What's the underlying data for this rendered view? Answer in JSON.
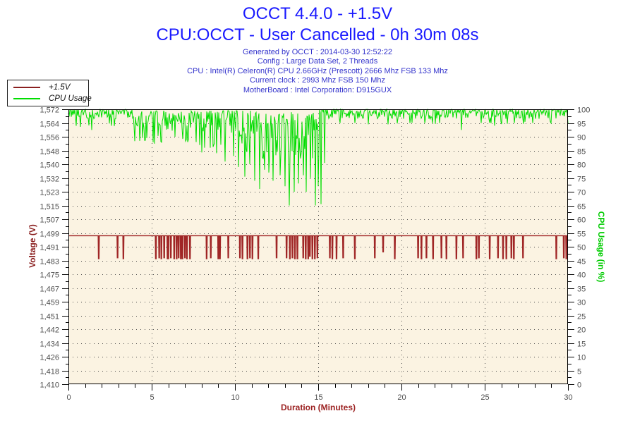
{
  "header": {
    "title": "OCCT 4.4.0 - +1.5V",
    "subtitle": "CPU:OCCT - User Cancelled - 0h 30m 08s",
    "title_color": "#1a1aff",
    "info_color": "#3333cc",
    "info": [
      "Generated by OCCT : 2014-03-30 12:52:22",
      "Config : Large Data Set, 2 Threads",
      "CPU : Intel(R) Celeron(R) CPU 2.66GHz (Prescott) 2666 Mhz FSB 133 Mhz",
      "Current clock : 2993 Mhz FSB 150 Mhz",
      "MotherBoard : Intel Corporation: D915GUX"
    ]
  },
  "legend": {
    "items": [
      {
        "label": "+1.5V",
        "color": "#8b2020"
      },
      {
        "label": "CPU Usage",
        "color": "#00dd00"
      }
    ]
  },
  "chart_data": {
    "type": "line",
    "title": "OCCT 4.4.0 - +1.5V",
    "x_axis": {
      "label": "Duration (Minutes)",
      "min": 0,
      "max": 30,
      "major_step": 5,
      "minor_step": 1,
      "tick_labels": [
        "0",
        "5",
        "10",
        "15",
        "20",
        "25",
        "30"
      ],
      "label_color": "#9c2323"
    },
    "y_left": {
      "label": "Voltage (V)",
      "min": 1.41,
      "max": 1.572,
      "label_color": "#8b2020",
      "tick_color": "#4d4d4d",
      "tick_labels": [
        "1,410",
        "1,418",
        "1,426",
        "1,434",
        "1,442",
        "1,451",
        "1,459",
        "1,467",
        "1,475",
        "1,483",
        "1,491",
        "1,499",
        "1,507",
        "1,515",
        "1,523",
        "1,532",
        "1,540",
        "1,548",
        "1,556",
        "1,564",
        "1,572"
      ]
    },
    "y_right": {
      "label": "CPU Usage (in %)",
      "min": 0,
      "max": 100,
      "major_step": 5,
      "label_color": "#00cc00",
      "tick_color": "#4d4d4d"
    },
    "plot": {
      "bg": "#fbf3e2",
      "grid_color": "#4a4a4a",
      "frame_color": "#000000"
    },
    "series": [
      {
        "name": "+1.5V",
        "axis": "left",
        "color": "#a02626",
        "baseline": 1.4975,
        "spikes": [
          [
            1.82,
            1.484
          ],
          [
            2.95,
            1.4845
          ],
          [
            3.3,
            1.484
          ],
          [
            5.25,
            1.484
          ],
          [
            5.45,
            1.4845
          ],
          [
            5.58,
            1.484
          ],
          [
            5.75,
            1.4845
          ],
          [
            5.95,
            1.484
          ],
          [
            6.0,
            1.484
          ],
          [
            6.15,
            1.4845
          ],
          [
            6.35,
            1.484
          ],
          [
            6.5,
            1.484
          ],
          [
            6.62,
            1.4845
          ],
          [
            6.75,
            1.484
          ],
          [
            6.85,
            1.484
          ],
          [
            7.0,
            1.4845
          ],
          [
            7.12,
            1.484
          ],
          [
            7.3,
            1.484
          ],
          [
            8.3,
            1.484
          ],
          [
            8.55,
            1.4845
          ],
          [
            9.0,
            1.484
          ],
          [
            9.1,
            1.484
          ],
          [
            9.6,
            1.4845
          ],
          [
            10.3,
            1.4845
          ],
          [
            10.45,
            1.484
          ],
          [
            10.75,
            1.484
          ],
          [
            10.9,
            1.4845
          ],
          [
            11.05,
            1.484
          ],
          [
            11.4,
            1.484
          ],
          [
            12.5,
            1.4845
          ],
          [
            13.1,
            1.4845
          ],
          [
            13.3,
            1.484
          ],
          [
            13.45,
            1.4845
          ],
          [
            13.6,
            1.484
          ],
          [
            13.75,
            1.484
          ],
          [
            14.1,
            1.4845
          ],
          [
            14.25,
            1.484
          ],
          [
            14.4,
            1.484
          ],
          [
            14.5,
            1.4855
          ],
          [
            14.65,
            1.484
          ],
          [
            14.8,
            1.484
          ],
          [
            14.95,
            1.4845
          ],
          [
            15.7,
            1.4845
          ],
          [
            15.85,
            1.484
          ],
          [
            16.1,
            1.484
          ],
          [
            16.5,
            1.4845
          ],
          [
            17.2,
            1.484
          ],
          [
            18.4,
            1.4845
          ],
          [
            18.9,
            1.488
          ],
          [
            19.6,
            1.484
          ],
          [
            21.0,
            1.4845
          ],
          [
            21.2,
            1.484
          ],
          [
            21.5,
            1.4845
          ],
          [
            21.9,
            1.484
          ],
          [
            22.4,
            1.4845
          ],
          [
            22.7,
            1.484
          ],
          [
            23.3,
            1.484
          ],
          [
            23.7,
            1.4845
          ],
          [
            24.5,
            1.484
          ],
          [
            24.65,
            1.4845
          ],
          [
            25.3,
            1.484
          ],
          [
            25.8,
            1.4845
          ],
          [
            26.1,
            1.484
          ],
          [
            26.3,
            1.484
          ],
          [
            26.6,
            1.4845
          ],
          [
            26.75,
            1.484
          ],
          [
            27.3,
            1.4845
          ],
          [
            29.3,
            1.484
          ],
          [
            29.75,
            1.4845
          ],
          [
            29.9,
            1.484
          ]
        ]
      },
      {
        "name": "CPU Usage",
        "axis": "right",
        "color": "#00dd00",
        "band_segments": [
          [
            0,
            3.85,
            96.5,
            100,
            0.04,
            93.5
          ],
          [
            3.85,
            8.0,
            92,
            99.5,
            0.15,
            88
          ],
          [
            8.0,
            11.0,
            90,
            99.5,
            0.2,
            84
          ],
          [
            11.0,
            15.05,
            88.5,
            99,
            0.25,
            82
          ],
          [
            15.05,
            30,
            96.5,
            100,
            0.06,
            94.5
          ]
        ],
        "spikes": [
          [
            1.4,
            92.5
          ],
          [
            2.6,
            94
          ],
          [
            4.3,
            88.5
          ],
          [
            4.7,
            89.5
          ],
          [
            5.15,
            87.5
          ],
          [
            5.6,
            88
          ],
          [
            6.4,
            90
          ],
          [
            7.2,
            89
          ],
          [
            7.9,
            87
          ],
          [
            8.5,
            86
          ],
          [
            8.9,
            84
          ],
          [
            9.4,
            81
          ],
          [
            9.9,
            83
          ],
          [
            10.2,
            79
          ],
          [
            10.6,
            75.5
          ],
          [
            10.9,
            80
          ],
          [
            11.2,
            74
          ],
          [
            11.5,
            71
          ],
          [
            11.8,
            78
          ],
          [
            12.05,
            77
          ],
          [
            12.3,
            74
          ],
          [
            12.7,
            76
          ],
          [
            13.0,
            72
          ],
          [
            13.25,
            65
          ],
          [
            13.55,
            70
          ],
          [
            13.8,
            73
          ],
          [
            14.1,
            76
          ],
          [
            14.3,
            70
          ],
          [
            14.55,
            75
          ],
          [
            14.85,
            65
          ],
          [
            15.0,
            72
          ],
          [
            15.15,
            65.5
          ],
          [
            15.4,
            80.5
          ],
          [
            16.3,
            95
          ],
          [
            17.2,
            95
          ],
          [
            18.0,
            94.5
          ],
          [
            19.2,
            94.5
          ],
          [
            20.5,
            95
          ],
          [
            21.4,
            95
          ],
          [
            22.3,
            95
          ],
          [
            23.6,
            92.5
          ],
          [
            24.8,
            95
          ],
          [
            25.6,
            94
          ],
          [
            26.8,
            95
          ],
          [
            27.9,
            95
          ],
          [
            29.0,
            95
          ]
        ]
      }
    ]
  }
}
